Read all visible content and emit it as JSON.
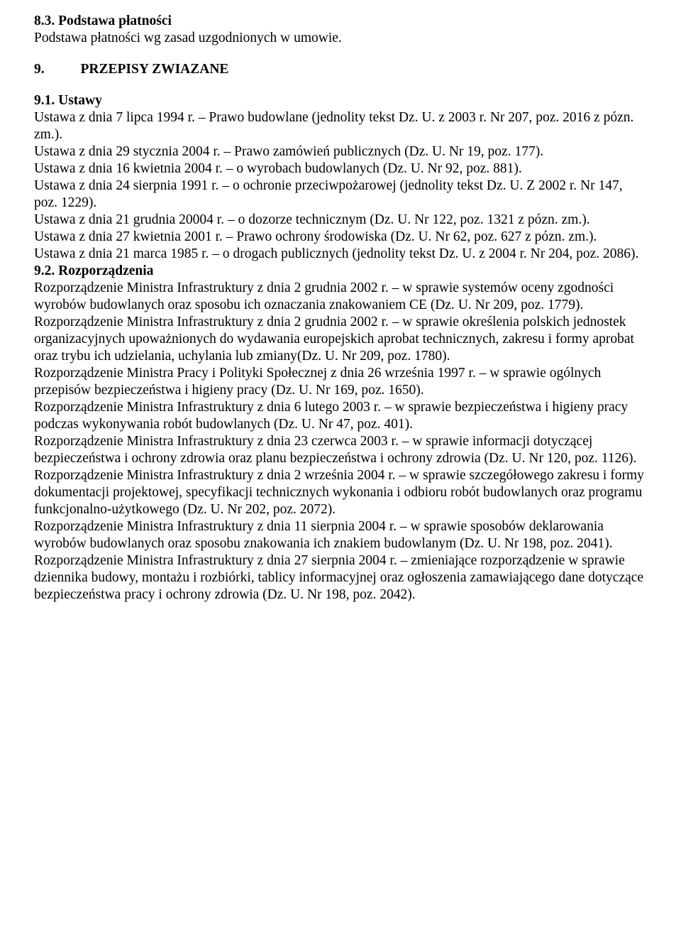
{
  "s83": {
    "heading": "8.3. Podstawa płatności",
    "text": "Podstawa płatności wg zasad uzgodnionych w umowie."
  },
  "s9": {
    "num": "9.",
    "title": "PRZEPISY ZWIAZANE"
  },
  "s91": {
    "heading": "9.1. Ustawy",
    "p1": "Ustawa z dnia 7 lipca 1994 r. – Prawo budowlane (jednolity tekst Dz. U. z 2003 r. Nr 207, poz. 2016 z pózn. zm.).",
    "p2": "Ustawa z dnia 29 stycznia 2004 r. – Prawo zamówień publicznych (Dz. U. Nr 19, poz. 177).",
    "p3": "Ustawa z dnia 16 kwietnia 2004 r. – o wyrobach budowlanych (Dz. U. Nr 92, poz. 881).",
    "p4": "Ustawa z dnia 24 sierpnia 1991 r. – o ochronie przeciwpożarowej (jednolity tekst Dz. U. Z 2002 r. Nr 147, poz. 1229).",
    "p5": "Ustawa z dnia 21 grudnia 20004 r. – o dozorze technicznym (Dz. U. Nr 122, poz. 1321 z pózn. zm.).",
    "p6": "Ustawa z dnia 27 kwietnia 2001 r. – Prawo ochrony środowiska (Dz. U. Nr 62, poz. 627 z pózn. zm.).",
    "p7": "Ustawa z dnia 21 marca 1985 r. – o drogach publicznych (jednolity tekst Dz. U. z 2004 r. Nr 204, poz. 2086)."
  },
  "s92": {
    "heading": "9.2. Rozporządzenia",
    "p1": "Rozporządzenie Ministra Infrastruktury z dnia 2 grudnia 2002 r. – w sprawie systemów oceny zgodności wyrobów budowlanych oraz sposobu ich oznaczania znakowaniem CE (Dz. U. Nr 209, poz. 1779).",
    "p2": "Rozporządzenie Ministra Infrastruktury z dnia 2 grudnia 2002 r. – w sprawie określenia polskich jednostek organizacyjnych upoważnionych do wydawania europejskich aprobat technicznych, zakresu i formy aprobat oraz trybu ich udzielania, uchylania lub zmiany(Dz. U. Nr 209, poz. 1780).",
    "p3": "Rozporządzenie Ministra Pracy i Polityki Społecznej z dnia 26 września 1997 r. – w sprawie ogólnych przepisów bezpieczeństwa i higieny pracy (Dz. U. Nr 169, poz. 1650).",
    "p4": "Rozporządzenie Ministra Infrastruktury z dnia 6 lutego 2003 r. – w sprawie bezpieczeństwa i higieny pracy podczas wykonywania robót budowlanych (Dz. U. Nr 47, poz. 401).",
    "p5": "Rozporządzenie Ministra Infrastruktury z dnia 23 czerwca 2003 r. – w sprawie informacji dotyczącej bezpieczeństwa i ochrony zdrowia oraz planu bezpieczeństwa i ochrony zdrowia (Dz. U. Nr 120, poz. 1126).",
    "p6": "Rozporządzenie Ministra Infrastruktury z dnia 2 września 2004 r. – w sprawie szczegółowego zakresu i formy dokumentacji projektowej, specyfikacji technicznych wykonania i odbioru robót budowlanych oraz programu funkcjonalno-użytkowego (Dz. U. Nr 202, poz. 2072).",
    "p7": "Rozporządzenie Ministra Infrastruktury z dnia 11 sierpnia 2004 r. – w sprawie sposobów deklarowania wyrobów budowlanych oraz sposobu znakowania ich znakiem budowlanym (Dz. U. Nr 198, poz. 2041).",
    "p8": "Rozporządzenie Ministra Infrastruktury z dnia 27 sierpnia 2004 r. – zmieniające rozporządzenie w sprawie dziennika budowy, montażu i rozbiórki, tablicy informacyjnej oraz ogłoszenia zamawiającego dane dotyczące bezpieczeństwa pracy i ochrony zdrowia (Dz. U. Nr 198, poz. 2042)."
  }
}
